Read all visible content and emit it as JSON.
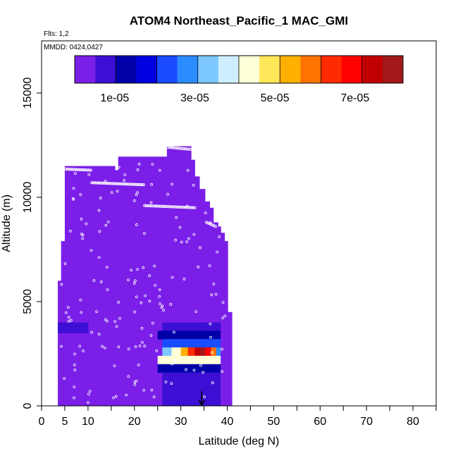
{
  "chart_data": {
    "type": "heatmap",
    "title": "ATOM4 Northeast_Pacific_1 MAC_GMI",
    "subtitle_lines": [
      "Flts: 1,2",
      "MMDD: 0424,0427"
    ],
    "xlabel": "Latitude (deg N)",
    "ylabel": "Altitude (m)",
    "xlim": [
      0,
      85
    ],
    "ylim": [
      0,
      17500
    ],
    "x_ticks_major": [
      0,
      10,
      20,
      30,
      40,
      50,
      60,
      70,
      80
    ],
    "x_ticks_major_labels": [
      "0",
      "10",
      "20",
      "30",
      "40",
      "50",
      "60",
      "70",
      "80"
    ],
    "x_tick_extra": [
      5
    ],
    "x_tick_extra_labels": [
      "5"
    ],
    "x_ticks_minor": [
      5,
      15,
      25,
      35,
      45,
      55,
      65,
      75,
      85
    ],
    "y_ticks": [
      0,
      5000,
      10000,
      15000
    ],
    "y_tick_labels": [
      "0",
      "5000",
      "10000",
      "15000"
    ],
    "colorbar": {
      "range": [
        0,
        8.2e-05
      ],
      "ticks": [
        1e-05,
        3e-05,
        5e-05,
        7e-05
      ],
      "tick_labels": [
        "1e-05",
        "3e-05",
        "5e-05",
        "7e-05"
      ],
      "colors": [
        "#7b1fe8",
        "#3d0fd5",
        "#0000a8",
        "#0000e0",
        "#1a4dff",
        "#2b8cff",
        "#7cc8ff",
        "#cfeeff",
        "#ffffd8",
        "#ffe75a",
        "#ffb000",
        "#ff7400",
        "#ff2a00",
        "#ff0000",
        "#c00000",
        "#a31818"
      ]
    },
    "background_value": 2e-06,
    "columns": [
      {
        "lat0": 3.5,
        "lat1": 4.2,
        "top": 6000
      },
      {
        "lat0": 4.2,
        "lat1": 5.0,
        "top": 7900
      },
      {
        "lat0": 5.0,
        "lat1": 15.8,
        "top": 11500
      },
      {
        "lat0": 15.8,
        "lat1": 16.5,
        "top": 11300
      },
      {
        "lat0": 16.5,
        "lat1": 27.0,
        "top": 11950
      },
      {
        "lat0": 27.0,
        "lat1": 32.2,
        "top": 12450
      },
      {
        "lat0": 32.2,
        "lat1": 33.0,
        "top": 11800
      },
      {
        "lat0": 33.0,
        "lat1": 34.0,
        "top": 11000
      },
      {
        "lat0": 34.0,
        "lat1": 35.2,
        "top": 10400
      },
      {
        "lat0": 35.2,
        "lat1": 36.2,
        "top": 9800
      },
      {
        "lat0": 36.2,
        "lat1": 37.0,
        "top": 9500
      },
      {
        "lat0": 37.0,
        "lat1": 38.0,
        "top": 8800
      },
      {
        "lat0": 38.0,
        "lat1": 38.6,
        "top": 8600
      },
      {
        "lat0": 38.6,
        "lat1": 39.4,
        "top": 8300
      },
      {
        "lat0": 39.4,
        "lat1": 40.1,
        "top": 7900
      },
      {
        "lat0": 40.1,
        "lat1": 41.0,
        "top": 4500
      }
    ],
    "bands": [
      {
        "lat0": 3.5,
        "lat1": 10.0,
        "alt0": 3500,
        "alt1": 4000,
        "value": 6e-06
      },
      {
        "lat0": 3.5,
        "lat1": 5.0,
        "alt0": 3500,
        "alt1": 4000,
        "value": 9e-06
      },
      {
        "lat0": 26.0,
        "lat1": 38.5,
        "alt0": 3600,
        "alt1": 4000,
        "value": 1e-05
      },
      {
        "lat0": 25.0,
        "lat1": 38.5,
        "alt0": 3200,
        "alt1": 3600,
        "value": 1.3e-05
      },
      {
        "lat0": 26.0,
        "lat1": 38.5,
        "alt0": 2800,
        "alt1": 3200,
        "value": 2.5e-05
      },
      {
        "lat0": 26.0,
        "lat1": 28.0,
        "alt0": 2400,
        "alt1": 2800,
        "value": 3.5e-05
      },
      {
        "lat0": 28.0,
        "lat1": 30.0,
        "alt0": 2400,
        "alt1": 2800,
        "value": 4.4e-05
      },
      {
        "lat0": 30.0,
        "lat1": 31.5,
        "alt0": 2400,
        "alt1": 2800,
        "value": 5.4e-05
      },
      {
        "lat0": 31.5,
        "lat1": 33.0,
        "alt0": 2400,
        "alt1": 2800,
        "value": 6.5e-05
      },
      {
        "lat0": 33.0,
        "lat1": 34.2,
        "alt0": 2400,
        "alt1": 2800,
        "value": 7.6e-05
      },
      {
        "lat0": 34.2,
        "lat1": 35.2,
        "alt0": 2400,
        "alt1": 2800,
        "value": 8e-05
      },
      {
        "lat0": 35.2,
        "lat1": 36.5,
        "alt0": 2400,
        "alt1": 2800,
        "value": 7e-05
      },
      {
        "lat0": 36.5,
        "lat1": 37.6,
        "alt0": 2400,
        "alt1": 2800,
        "value": 6e-05
      },
      {
        "lat0": 37.6,
        "lat1": 38.5,
        "alt0": 2400,
        "alt1": 2800,
        "value": 3e-05
      },
      {
        "lat0": 25.0,
        "lat1": 38.5,
        "alt0": 2000,
        "alt1": 2400,
        "value": 4.2e-05
      },
      {
        "lat0": 25.0,
        "lat1": 38.5,
        "alt0": 1600,
        "alt1": 2000,
        "value": 1.2e-05
      },
      {
        "lat0": 26.0,
        "lat1": 38.5,
        "alt0": 1100,
        "alt1": 1600,
        "value": 8e-06
      },
      {
        "lat0": 26.0,
        "lat1": 38.5,
        "alt0": 500,
        "alt1": 1100,
        "value": 8.5e-06
      },
      {
        "lat0": 26.0,
        "lat1": 38.5,
        "alt0": 0,
        "alt1": 500,
        "value": 7e-06
      }
    ],
    "flight_segments": [
      {
        "lat0": 5.2,
        "lat1": 10.6,
        "alt0": 11350,
        "alt1": 11300
      },
      {
        "lat0": 10.8,
        "lat1": 22.0,
        "alt0": 10700,
        "alt1": 10600
      },
      {
        "lat0": 22.2,
        "lat1": 33.0,
        "alt0": 9600,
        "alt1": 9500
      },
      {
        "lat0": 27.2,
        "lat1": 32.0,
        "alt0": 12400,
        "alt1": 12300
      },
      {
        "lat0": 35.5,
        "lat1": 37.5,
        "alt0": 8800,
        "alt1": 8600
      }
    ],
    "flight_points_count": 160,
    "arrow": {
      "lat": 34.5,
      "alt_top": 700,
      "alt_bottom": 0
    }
  }
}
